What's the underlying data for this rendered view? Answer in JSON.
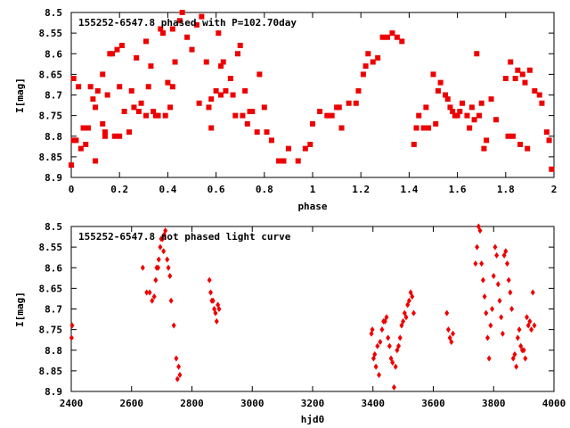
{
  "chart_data": [
    {
      "type": "scatter",
      "title": "155252-6547.8 phased with P=102.70day",
      "xlabel": "phase",
      "ylabel": "I[mag]",
      "xlim": [
        0,
        2
      ],
      "ylim": [
        8.5,
        8.9
      ],
      "y_inverted": true,
      "x_ticks": [
        0,
        0.2,
        0.4,
        0.6,
        0.8,
        1,
        1.2,
        1.4,
        1.6,
        1.8,
        2
      ],
      "x_tick_labels": [
        "0",
        "0.2",
        "0.4",
        "0.6",
        "0.8",
        "1",
        "1.2",
        "1.4",
        "1.6",
        "1.8",
        "2"
      ],
      "y_ticks": [
        8.5,
        8.55,
        8.6,
        8.65,
        8.7,
        8.75,
        8.8,
        8.85,
        8.9
      ],
      "y_tick_labels": [
        "8.5",
        "8.55",
        "8.6",
        "8.65",
        "8.7",
        "8.75",
        "8.8",
        "8.85",
        "8.9"
      ],
      "marker": "filled-square",
      "color": "#ee0000",
      "points": [
        [
          0.0,
          8.87
        ],
        [
          0.01,
          8.81
        ],
        [
          0.01,
          8.66
        ],
        [
          0.02,
          8.81
        ],
        [
          0.03,
          8.68
        ],
        [
          0.04,
          8.83
        ],
        [
          0.05,
          8.78
        ],
        [
          0.06,
          8.82
        ],
        [
          0.07,
          8.78
        ],
        [
          0.08,
          8.68
        ],
        [
          0.09,
          8.71
        ],
        [
          0.1,
          8.73
        ],
        [
          0.1,
          8.86
        ],
        [
          0.11,
          8.69
        ],
        [
          0.13,
          8.65
        ],
        [
          0.13,
          8.77
        ],
        [
          0.14,
          8.79
        ],
        [
          0.14,
          8.8
        ],
        [
          0.15,
          8.7
        ],
        [
          0.16,
          8.6
        ],
        [
          0.17,
          8.6
        ],
        [
          0.18,
          8.8
        ],
        [
          0.19,
          8.59
        ],
        [
          0.2,
          8.8
        ],
        [
          0.2,
          8.68
        ],
        [
          0.21,
          8.58
        ],
        [
          0.22,
          8.74
        ],
        [
          0.24,
          8.79
        ],
        [
          0.25,
          8.69
        ],
        [
          0.26,
          8.73
        ],
        [
          0.27,
          8.61
        ],
        [
          0.28,
          8.74
        ],
        [
          0.29,
          8.72
        ],
        [
          0.31,
          8.57
        ],
        [
          0.31,
          8.75
        ],
        [
          0.32,
          8.68
        ],
        [
          0.33,
          8.63
        ],
        [
          0.34,
          8.74
        ],
        [
          0.35,
          8.75
        ],
        [
          0.36,
          8.75
        ],
        [
          0.37,
          8.54
        ],
        [
          0.38,
          8.55
        ],
        [
          0.39,
          8.75
        ],
        [
          0.4,
          8.67
        ],
        [
          0.41,
          8.73
        ],
        [
          0.42,
          8.68
        ],
        [
          0.42,
          8.54
        ],
        [
          0.43,
          8.62
        ],
        [
          0.45,
          8.52
        ],
        [
          0.46,
          8.5
        ],
        [
          0.48,
          8.56
        ],
        [
          0.5,
          8.59
        ],
        [
          0.52,
          8.53
        ],
        [
          0.53,
          8.72
        ],
        [
          0.54,
          8.51
        ],
        [
          0.56,
          8.62
        ],
        [
          0.57,
          8.73
        ],
        [
          0.58,
          8.71
        ],
        [
          0.58,
          8.78
        ],
        [
          0.6,
          8.69
        ],
        [
          0.61,
          8.55
        ],
        [
          0.62,
          8.63
        ],
        [
          0.62,
          8.7
        ],
        [
          0.63,
          8.62
        ],
        [
          0.64,
          8.69
        ],
        [
          0.66,
          8.66
        ],
        [
          0.67,
          8.7
        ],
        [
          0.68,
          8.75
        ],
        [
          0.69,
          8.6
        ],
        [
          0.7,
          8.58
        ],
        [
          0.71,
          8.75
        ],
        [
          0.72,
          8.69
        ],
        [
          0.73,
          8.77
        ],
        [
          0.74,
          8.74
        ],
        [
          0.75,
          8.74
        ],
        [
          0.77,
          8.79
        ],
        [
          0.78,
          8.65
        ],
        [
          0.8,
          8.73
        ],
        [
          0.81,
          8.79
        ],
        [
          0.83,
          8.81
        ],
        [
          0.86,
          8.86
        ],
        [
          0.88,
          8.86
        ],
        [
          0.9,
          8.83
        ],
        [
          0.94,
          8.86
        ],
        [
          0.97,
          8.83
        ],
        [
          0.99,
          8.82
        ],
        [
          1.0,
          8.77
        ],
        [
          1.03,
          8.74
        ],
        [
          1.06,
          8.75
        ],
        [
          1.08,
          8.75
        ],
        [
          1.1,
          8.73
        ],
        [
          1.11,
          8.73
        ],
        [
          1.12,
          8.78
        ],
        [
          1.15,
          8.72
        ],
        [
          1.18,
          8.72
        ],
        [
          1.19,
          8.69
        ],
        [
          1.21,
          8.65
        ],
        [
          1.22,
          8.63
        ],
        [
          1.23,
          8.6
        ],
        [
          1.25,
          8.62
        ],
        [
          1.27,
          8.61
        ],
        [
          1.29,
          8.56
        ],
        [
          1.31,
          8.56
        ],
        [
          1.33,
          8.55
        ],
        [
          1.35,
          8.56
        ],
        [
          1.37,
          8.57
        ],
        [
          1.42,
          8.82
        ],
        [
          1.43,
          8.78
        ],
        [
          1.44,
          8.75
        ],
        [
          1.46,
          8.78
        ],
        [
          1.47,
          8.73
        ],
        [
          1.48,
          8.78
        ],
        [
          1.5,
          8.65
        ],
        [
          1.51,
          8.77
        ],
        [
          1.52,
          8.69
        ],
        [
          1.53,
          8.67
        ],
        [
          1.55,
          8.7
        ],
        [
          1.56,
          8.71
        ],
        [
          1.57,
          8.73
        ],
        [
          1.58,
          8.74
        ],
        [
          1.59,
          8.75
        ],
        [
          1.6,
          8.75
        ],
        [
          1.61,
          8.74
        ],
        [
          1.62,
          8.72
        ],
        [
          1.64,
          8.75
        ],
        [
          1.65,
          8.78
        ],
        [
          1.66,
          8.73
        ],
        [
          1.67,
          8.76
        ],
        [
          1.68,
          8.6
        ],
        [
          1.69,
          8.75
        ],
        [
          1.7,
          8.72
        ],
        [
          1.71,
          8.83
        ],
        [
          1.72,
          8.81
        ],
        [
          1.74,
          8.71
        ],
        [
          1.76,
          8.76
        ],
        [
          1.8,
          8.66
        ],
        [
          1.81,
          8.8
        ],
        [
          1.82,
          8.62
        ],
        [
          1.83,
          8.8
        ],
        [
          1.84,
          8.66
        ],
        [
          1.85,
          8.64
        ],
        [
          1.86,
          8.82
        ],
        [
          1.87,
          8.65
        ],
        [
          1.88,
          8.67
        ],
        [
          1.89,
          8.83
        ],
        [
          1.9,
          8.64
        ],
        [
          1.92,
          8.69
        ],
        [
          1.94,
          8.7
        ],
        [
          1.95,
          8.72
        ],
        [
          1.97,
          8.79
        ],
        [
          1.98,
          8.81
        ],
        [
          1.99,
          8.88
        ]
      ]
    },
    {
      "type": "scatter",
      "title": "155252-6547.8 not phased light curve",
      "xlabel": "hjd0",
      "ylabel": "I[mag]",
      "xlim": [
        2400,
        4000
      ],
      "ylim": [
        8.5,
        8.9
      ],
      "y_inverted": true,
      "x_ticks": [
        2400,
        2600,
        2800,
        3000,
        3200,
        3400,
        3600,
        3800,
        4000
      ],
      "x_tick_labels": [
        "2400",
        "2600",
        "2800",
        "3000",
        "3200",
        "3400",
        "3600",
        "3800",
        "4000"
      ],
      "y_ticks": [
        8.5,
        8.55,
        8.6,
        8.65,
        8.7,
        8.75,
        8.8,
        8.85,
        8.9
      ],
      "y_tick_labels": [
        "8.5",
        "8.55",
        "8.6",
        "8.65",
        "8.7",
        "8.75",
        "8.8",
        "8.85",
        "8.9"
      ],
      "marker": "filled-diamond",
      "color": "#ee0000",
      "points": [
        [
          2401,
          8.77
        ],
        [
          2403,
          8.74
        ],
        [
          2637,
          8.6
        ],
        [
          2650,
          8.66
        ],
        [
          2660,
          8.66
        ],
        [
          2668,
          8.68
        ],
        [
          2675,
          8.67
        ],
        [
          2680,
          8.63
        ],
        [
          2683,
          8.6
        ],
        [
          2688,
          8.6
        ],
        [
          2690,
          8.58
        ],
        [
          2695,
          8.55
        ],
        [
          2698,
          8.53
        ],
        [
          2703,
          8.53
        ],
        [
          2706,
          8.56
        ],
        [
          2708,
          8.52
        ],
        [
          2712,
          8.51
        ],
        [
          2718,
          8.58
        ],
        [
          2722,
          8.6
        ],
        [
          2727,
          8.62
        ],
        [
          2731,
          8.68
        ],
        [
          2740,
          8.74
        ],
        [
          2748,
          8.82
        ],
        [
          2752,
          8.87
        ],
        [
          2756,
          8.84
        ],
        [
          2760,
          8.86
        ],
        [
          2858,
          8.63
        ],
        [
          2862,
          8.66
        ],
        [
          2866,
          8.68
        ],
        [
          2870,
          8.68
        ],
        [
          2874,
          8.7
        ],
        [
          2878,
          8.71
        ],
        [
          2882,
          8.73
        ],
        [
          2886,
          8.69
        ],
        [
          2890,
          8.7
        ],
        [
          3395,
          8.76
        ],
        [
          3398,
          8.75
        ],
        [
          3402,
          8.82
        ],
        [
          3406,
          8.81
        ],
        [
          3410,
          8.84
        ],
        [
          3415,
          8.79
        ],
        [
          3420,
          8.86
        ],
        [
          3424,
          8.78
        ],
        [
          3430,
          8.75
        ],
        [
          3435,
          8.73
        ],
        [
          3440,
          8.73
        ],
        [
          3445,
          8.72
        ],
        [
          3450,
          8.77
        ],
        [
          3455,
          8.79
        ],
        [
          3460,
          8.82
        ],
        [
          3465,
          8.83
        ],
        [
          3470,
          8.89
        ],
        [
          3475,
          8.84
        ],
        [
          3480,
          8.8
        ],
        [
          3485,
          8.79
        ],
        [
          3490,
          8.77
        ],
        [
          3495,
          8.74
        ],
        [
          3500,
          8.73
        ],
        [
          3505,
          8.71
        ],
        [
          3510,
          8.72
        ],
        [
          3515,
          8.69
        ],
        [
          3520,
          8.68
        ],
        [
          3525,
          8.66
        ],
        [
          3530,
          8.67
        ],
        [
          3535,
          8.71
        ],
        [
          3645,
          8.71
        ],
        [
          3650,
          8.75
        ],
        [
          3655,
          8.77
        ],
        [
          3660,
          8.78
        ],
        [
          3665,
          8.76
        ],
        [
          3740,
          8.59
        ],
        [
          3745,
          8.55
        ],
        [
          3750,
          8.5
        ],
        [
          3755,
          8.51
        ],
        [
          3760,
          8.59
        ],
        [
          3765,
          8.63
        ],
        [
          3770,
          8.67
        ],
        [
          3775,
          8.71
        ],
        [
          3780,
          8.77
        ],
        [
          3785,
          8.82
        ],
        [
          3790,
          8.74
        ],
        [
          3795,
          8.7
        ],
        [
          3800,
          8.62
        ],
        [
          3805,
          8.55
        ],
        [
          3810,
          8.57
        ],
        [
          3815,
          8.64
        ],
        [
          3820,
          8.68
        ],
        [
          3825,
          8.72
        ],
        [
          3830,
          8.76
        ],
        [
          3835,
          8.57
        ],
        [
          3840,
          8.56
        ],
        [
          3845,
          8.59
        ],
        [
          3850,
          8.63
        ],
        [
          3855,
          8.66
        ],
        [
          3860,
          8.7
        ],
        [
          3865,
          8.82
        ],
        [
          3870,
          8.81
        ],
        [
          3875,
          8.84
        ],
        [
          3880,
          8.77
        ],
        [
          3885,
          8.75
        ],
        [
          3890,
          8.79
        ],
        [
          3895,
          8.8
        ],
        [
          3900,
          8.8
        ],
        [
          3905,
          8.82
        ],
        [
          3910,
          8.72
        ],
        [
          3915,
          8.74
        ],
        [
          3920,
          8.73
        ],
        [
          3925,
          8.75
        ],
        [
          3930,
          8.66
        ],
        [
          3935,
          8.74
        ]
      ]
    }
  ]
}
